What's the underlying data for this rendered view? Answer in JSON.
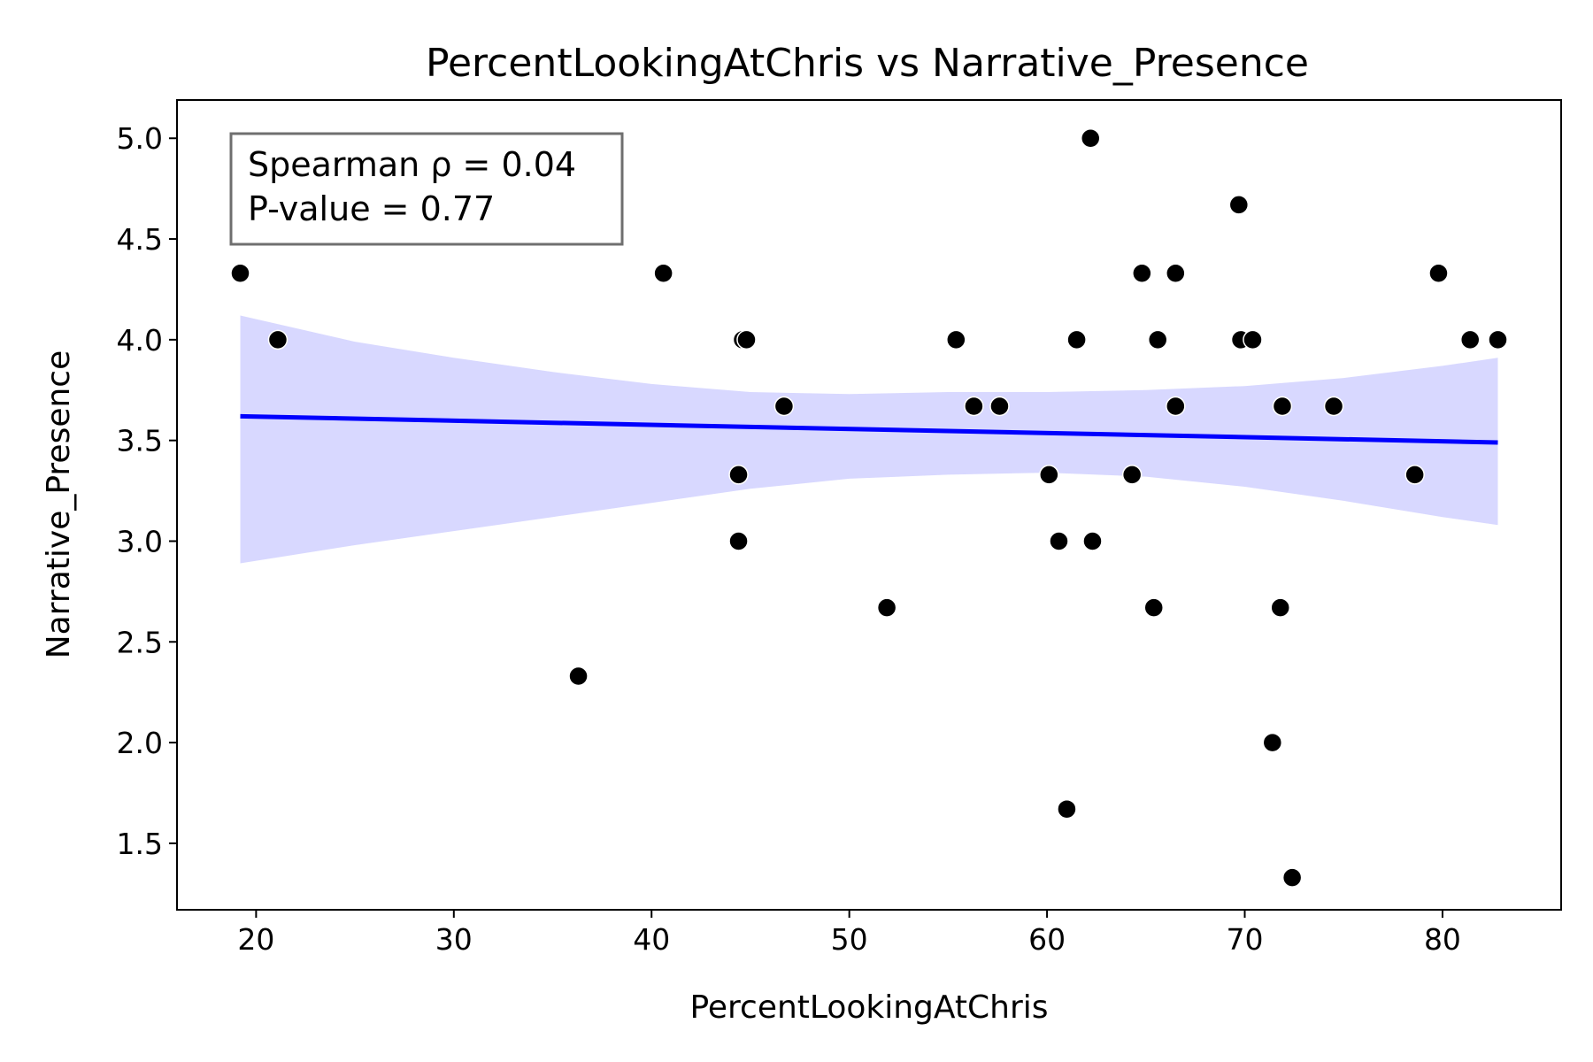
{
  "chart_data": {
    "type": "scatter",
    "title": "PercentLookingAtChris vs Narrative_Presence",
    "xlabel": "PercentLookingAtChris",
    "ylabel": "Narrative_Presence",
    "xlim": [
      16,
      86
    ],
    "ylim": [
      1.17,
      5.19
    ],
    "xticks": [
      20,
      30,
      40,
      50,
      60,
      70,
      80
    ],
    "yticks": [
      1.5,
      2.0,
      2.5,
      3.0,
      3.5,
      4.0,
      4.5,
      5.0
    ],
    "xtick_labels": [
      "20",
      "30",
      "40",
      "50",
      "60",
      "70",
      "80"
    ],
    "ytick_labels": [
      "1.5",
      "2.0",
      "2.5",
      "3.0",
      "3.5",
      "4.0",
      "4.5",
      "5.0"
    ],
    "grid": false,
    "annotation": {
      "line1": "Spearman ρ = 0.04",
      "line2": "P-value = 0.77",
      "placement": "top-left"
    },
    "points": [
      {
        "x": 19.2,
        "y": 4.33
      },
      {
        "x": 21.1,
        "y": 4.0
      },
      {
        "x": 36.3,
        "y": 2.33
      },
      {
        "x": 40.6,
        "y": 4.33
      },
      {
        "x": 44.4,
        "y": 3.33
      },
      {
        "x": 44.4,
        "y": 3.0
      },
      {
        "x": 44.6,
        "y": 4.0
      },
      {
        "x": 44.8,
        "y": 4.0
      },
      {
        "x": 46.7,
        "y": 3.67
      },
      {
        "x": 51.9,
        "y": 2.67
      },
      {
        "x": 55.4,
        "y": 4.0
      },
      {
        "x": 56.3,
        "y": 3.67
      },
      {
        "x": 57.6,
        "y": 3.67
      },
      {
        "x": 60.1,
        "y": 3.33
      },
      {
        "x": 60.6,
        "y": 3.0
      },
      {
        "x": 61.0,
        "y": 1.67
      },
      {
        "x": 61.5,
        "y": 4.0
      },
      {
        "x": 62.2,
        "y": 5.0
      },
      {
        "x": 62.3,
        "y": 3.0
      },
      {
        "x": 64.3,
        "y": 3.33
      },
      {
        "x": 64.8,
        "y": 4.33
      },
      {
        "x": 65.4,
        "y": 2.67
      },
      {
        "x": 65.6,
        "y": 4.0
      },
      {
        "x": 66.5,
        "y": 4.33
      },
      {
        "x": 66.5,
        "y": 3.67
      },
      {
        "x": 69.7,
        "y": 4.67
      },
      {
        "x": 69.8,
        "y": 4.0
      },
      {
        "x": 70.4,
        "y": 4.0
      },
      {
        "x": 71.4,
        "y": 2.0
      },
      {
        "x": 71.8,
        "y": 2.67
      },
      {
        "x": 71.9,
        "y": 3.67
      },
      {
        "x": 72.4,
        "y": 1.33
      },
      {
        "x": 74.5,
        "y": 3.67
      },
      {
        "x": 78.6,
        "y": 3.33
      },
      {
        "x": 79.8,
        "y": 4.33
      },
      {
        "x": 81.4,
        "y": 4.0
      },
      {
        "x": 82.8,
        "y": 4.0
      }
    ],
    "regression": {
      "x": [
        19.2,
        82.8
      ],
      "y": [
        3.62,
        3.49
      ]
    },
    "confidence_band": {
      "x": [
        19.2,
        25,
        30,
        35,
        40,
        45,
        50,
        55,
        60,
        65,
        70,
        75,
        80,
        82.8
      ],
      "lower": [
        2.89,
        2.98,
        3.05,
        3.12,
        3.19,
        3.26,
        3.31,
        3.33,
        3.34,
        3.32,
        3.27,
        3.2,
        3.12,
        3.08
      ],
      "upper": [
        4.12,
        3.99,
        3.91,
        3.84,
        3.78,
        3.74,
        3.73,
        3.74,
        3.74,
        3.75,
        3.77,
        3.81,
        3.87,
        3.91
      ]
    },
    "colors": {
      "points": "#000000",
      "regression_line": "#0000ff",
      "confidence_band": "#d8d8ff",
      "annotation_border": "#6f6f6f"
    }
  }
}
